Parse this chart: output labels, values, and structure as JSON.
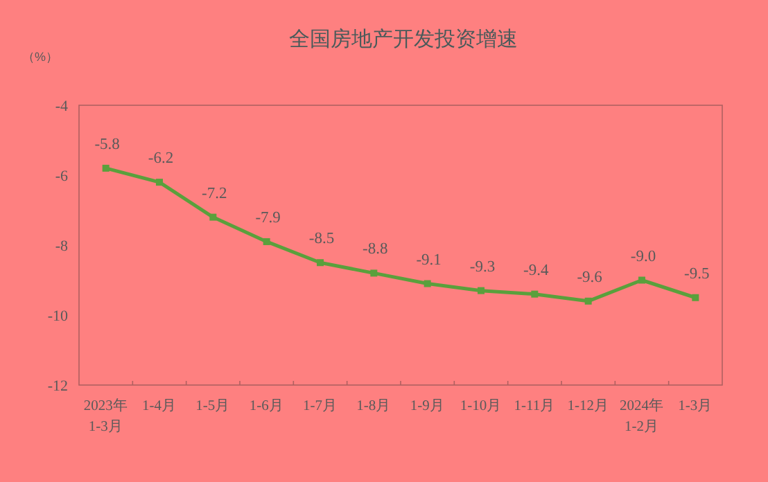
{
  "chart_data": {
    "type": "line",
    "title": "全国房地产开发投资增速",
    "ylabel": "（%）",
    "categories": [
      "2023年\n1-3月",
      "1-4月",
      "1-5月",
      "1-6月",
      "1-7月",
      "1-8月",
      "1-9月",
      "1-10月",
      "1-11月",
      "1-12月",
      "2024年\n1-2月",
      "1-3月"
    ],
    "series": [
      {
        "color": "#5aa03c",
        "values": [
          -5.8,
          -6.2,
          -7.2,
          -7.9,
          -8.5,
          -8.8,
          -9.1,
          -9.3,
          -9.4,
          -9.6,
          -9.0,
          -9.5
        ],
        "value_labels": [
          "-5.8",
          "-6.2",
          "-7.2",
          "-7.9",
          "-8.5",
          "-8.8",
          "-9.1",
          "-9.3",
          "-9.4",
          "-9.6",
          "-9.0",
          "-9.5"
        ]
      }
    ],
    "ylim": [
      -12,
      -4
    ],
    "yticks": [
      -12,
      -10,
      -8,
      -6,
      -4
    ],
    "marker": "square",
    "grid": false
  }
}
